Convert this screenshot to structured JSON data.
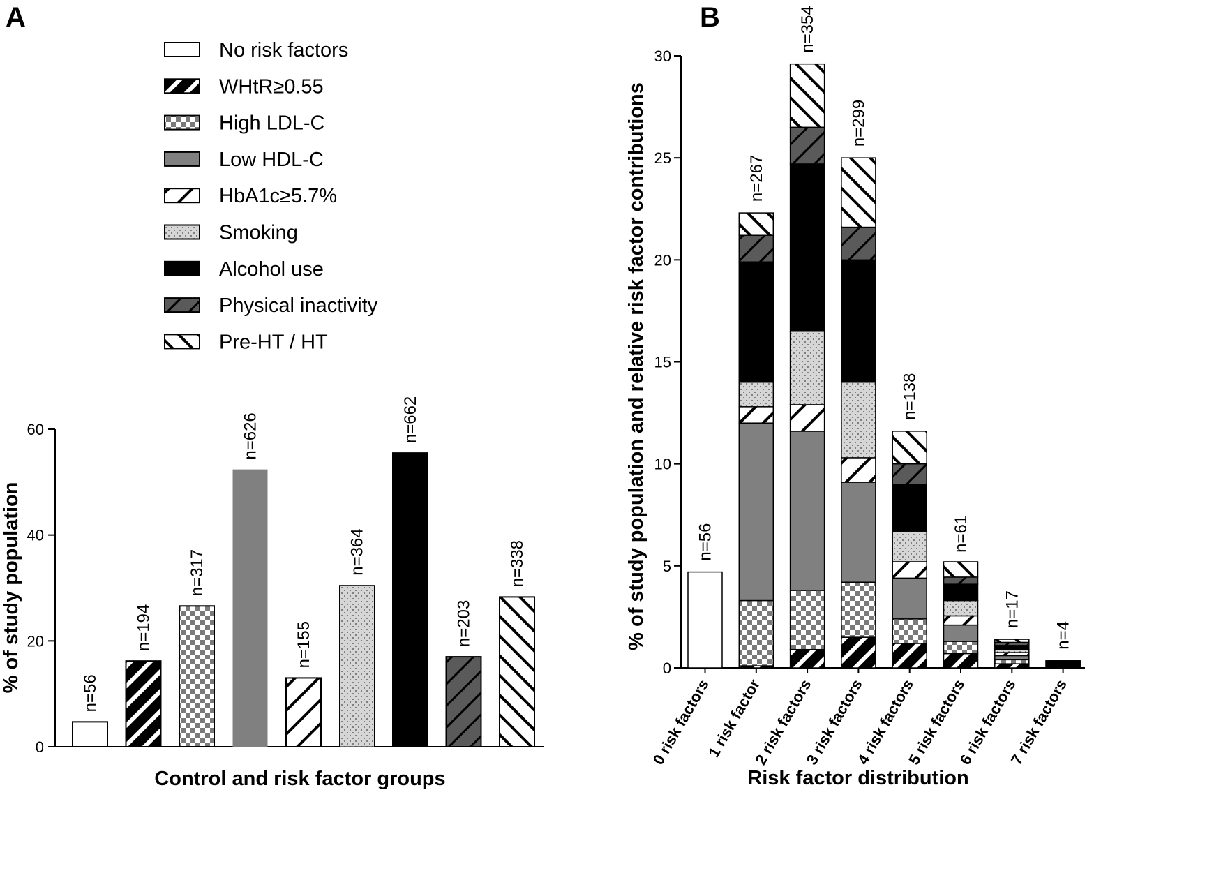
{
  "colors": {
    "no_risk": "#ffffff",
    "whtr": "#000000",
    "ldl": "#7a7a7a",
    "hdl": "#808080",
    "hba1c": "#000000",
    "smoking": "#d6d6d6",
    "alcohol": "#000000",
    "inactivity": "#5a5a5a",
    "preht": "#000000",
    "axis": "#000000"
  },
  "legend": {
    "items": [
      {
        "key": "no_risk",
        "label": "No risk factors"
      },
      {
        "key": "whtr",
        "label": "WHtR≥0.55"
      },
      {
        "key": "ldl",
        "label": "High LDL-C"
      },
      {
        "key": "hdl",
        "label": "Low HDL-C"
      },
      {
        "key": "hba1c",
        "label": "HbA1c≥5.7%"
      },
      {
        "key": "smoking",
        "label": "Smoking"
      },
      {
        "key": "alcohol",
        "label": "Alcohol use"
      },
      {
        "key": "inactivity",
        "label": "Physical inactivity"
      },
      {
        "key": "preht",
        "label": "Pre-HT / HT"
      }
    ]
  },
  "chart_data": [
    {
      "panel": "A",
      "type": "bar",
      "title": "",
      "xlabel": "Control and risk factor groups",
      "ylabel": "% of study population",
      "ylim": [
        0,
        60
      ],
      "yticks": [
        0,
        20,
        40,
        60
      ],
      "bars": [
        {
          "key": "no_risk",
          "value": 4.7,
          "n": "n=56"
        },
        {
          "key": "whtr",
          "value": 16.2,
          "n": "n=194"
        },
        {
          "key": "ldl",
          "value": 26.6,
          "n": "n=317"
        },
        {
          "key": "hdl",
          "value": 52.4,
          "n": "n=626"
        },
        {
          "key": "hba1c",
          "value": 13.0,
          "n": "n=155"
        },
        {
          "key": "smoking",
          "value": 30.5,
          "n": "n=364"
        },
        {
          "key": "alcohol",
          "value": 55.5,
          "n": "n=662"
        },
        {
          "key": "inactivity",
          "value": 17.0,
          "n": "n=203"
        },
        {
          "key": "preht",
          "value": 28.3,
          "n": "n=338"
        }
      ]
    },
    {
      "panel": "B",
      "type": "bar",
      "stacked": true,
      "title": "",
      "xlabel": "Risk factor distribution",
      "ylabel": "% of study population and relative risk factor contributions",
      "ylim": [
        0,
        30
      ],
      "yticks": [
        0,
        5,
        10,
        15,
        20,
        25,
        30
      ],
      "categories": [
        "0 risk factors",
        "1 risk factor",
        "2 risk factors",
        "3 risk factors",
        "4 risk factors",
        "5 risk factors",
        "6 risk factors",
        "7 risk factors"
      ],
      "n_labels": [
        "n=56",
        "n=267",
        "n=354",
        "n=299",
        "n=138",
        "n=61",
        "n=17",
        "n=4"
      ],
      "totals": [
        4.7,
        22.3,
        29.6,
        25.0,
        11.6,
        5.1,
        1.4,
        0.35
      ],
      "series": [
        {
          "key": "no_risk",
          "name": "No risk factors",
          "values": [
            4.7,
            0,
            0,
            0,
            0,
            0,
            0,
            0
          ]
        },
        {
          "key": "whtr",
          "name": "WHtR≥0.55",
          "values": [
            0,
            0.1,
            0.9,
            1.5,
            1.2,
            0.7,
            0.2,
            0.05
          ]
        },
        {
          "key": "ldl",
          "name": "High LDL-C",
          "values": [
            0,
            3.2,
            2.9,
            2.7,
            1.2,
            0.6,
            0.2,
            0.05
          ]
        },
        {
          "key": "hdl",
          "name": "Low HDL-C",
          "values": [
            0,
            8.7,
            7.8,
            4.9,
            2.0,
            0.8,
            0.2,
            0.05
          ]
        },
        {
          "key": "hba1c",
          "name": "HbA1c≥5.7%",
          "values": [
            0,
            0.8,
            1.3,
            1.2,
            0.8,
            0.45,
            0.15,
            0.05
          ]
        },
        {
          "key": "smoking",
          "name": "Smoking",
          "values": [
            0,
            1.2,
            3.6,
            3.7,
            1.5,
            0.75,
            0.15,
            0.05
          ]
        },
        {
          "key": "alcohol",
          "name": "Alcohol use",
          "values": [
            0,
            5.9,
            8.2,
            6.0,
            2.3,
            0.8,
            0.2,
            0.05
          ]
        },
        {
          "key": "inactivity",
          "name": "Physical inactivity",
          "values": [
            0,
            1.3,
            1.8,
            1.6,
            1.0,
            0.35,
            0.15,
            0.03
          ]
        },
        {
          "key": "preht",
          "name": "Pre-HT / HT",
          "values": [
            0,
            1.1,
            3.1,
            3.4,
            1.6,
            0.75,
            0.15,
            0.02
          ]
        }
      ]
    }
  ]
}
